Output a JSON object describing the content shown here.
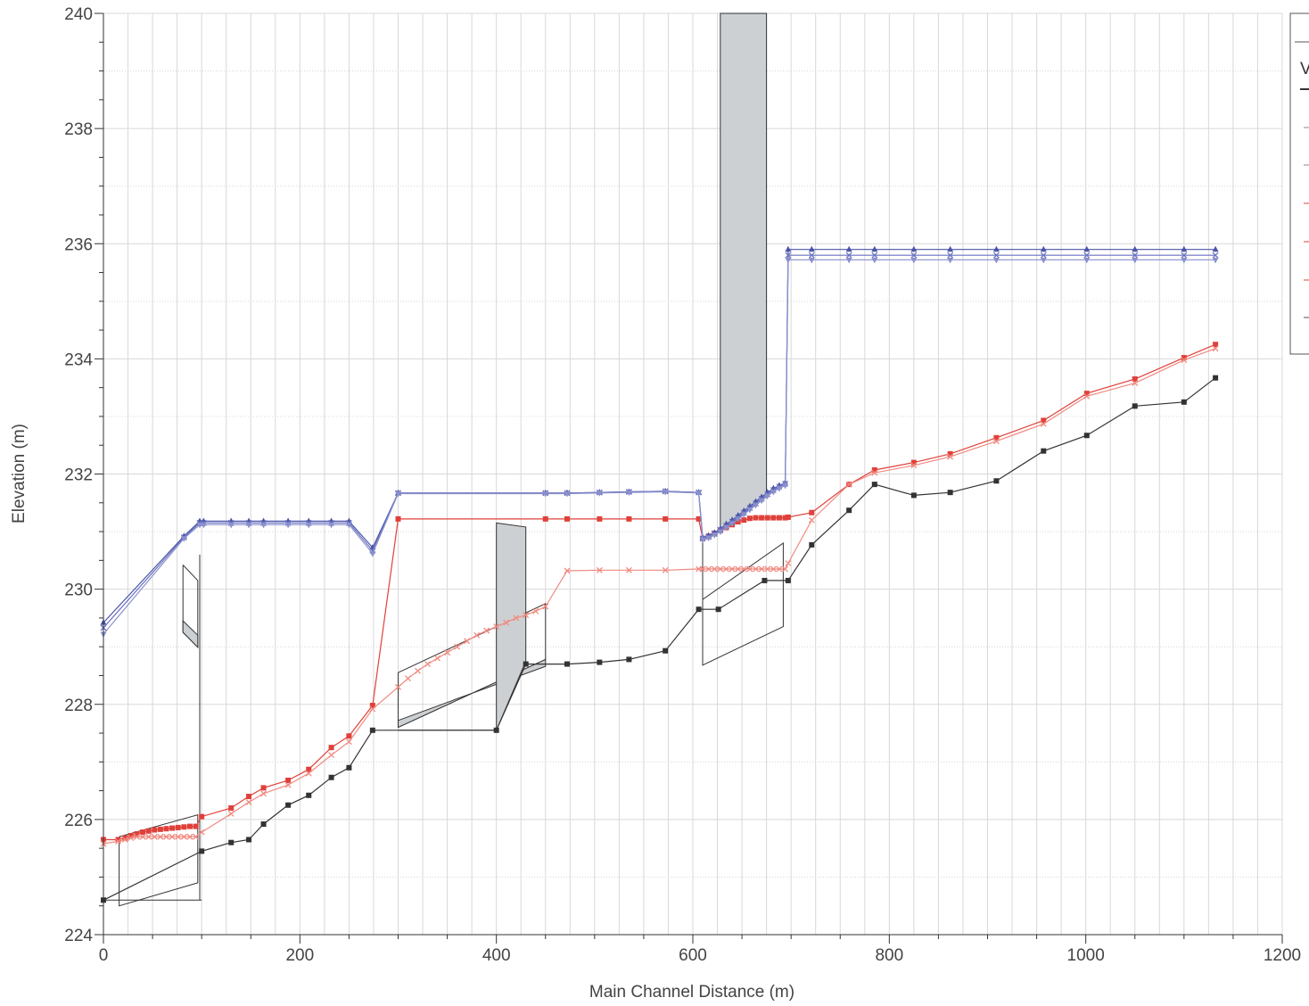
{
  "chart_data": {
    "type": "line",
    "xlabel": "Main Channel Distance (m)",
    "ylabel": "Elevation (m)",
    "xlim": [
      0,
      1200
    ],
    "ylim": [
      224,
      240
    ],
    "x_ticks": [
      0,
      200,
      400,
      600,
      800,
      1000,
      1200
    ],
    "y_ticks": [
      224,
      226,
      228,
      230,
      232,
      234,
      236,
      238,
      240
    ],
    "grid": true,
    "legend_position": "top-right (cut off)",
    "legend_visible_text": "V",
    "colors": {
      "ground": "#333333",
      "red_dark": "#e0403a",
      "red_light": "#f08a80",
      "blue_dark": "#4a55a8",
      "blue_mid": "#6a72c0",
      "blue_light": "#8a90cc",
      "structure_fill": "#cdd0d3",
      "structure_line": "#333333",
      "grid": "#d8d8d8"
    },
    "series": [
      {
        "color_key": "ground",
        "marker": "square",
        "x": [
          0,
          100,
          130,
          148,
          163,
          188,
          209,
          232,
          250,
          274,
          400,
          430,
          472,
          505,
          535,
          572,
          606,
          626,
          673,
          697,
          721,
          759,
          785,
          825,
          862,
          909,
          957,
          1001,
          1050,
          1100,
          1132
        ],
        "y": [
          224.6,
          225.45,
          225.6,
          225.65,
          225.92,
          226.25,
          226.42,
          226.73,
          226.9,
          227.55,
          227.55,
          228.7,
          228.7,
          228.73,
          228.78,
          228.93,
          229.65,
          229.65,
          230.15,
          230.15,
          230.77,
          231.37,
          231.82,
          231.63,
          231.68,
          231.88,
          232.4,
          232.67,
          233.18,
          233.25,
          233.67
        ]
      },
      {
        "color_key": "red_dark",
        "marker": "square",
        "x": [
          0,
          15,
          22,
          28,
          34,
          40,
          46,
          52,
          58,
          64,
          70,
          76,
          82,
          88,
          94,
          100,
          130,
          148,
          163,
          188,
          209,
          232,
          250,
          274,
          300,
          450,
          472,
          505,
          535,
          572,
          606,
          610,
          616,
          622,
          628,
          634,
          640,
          646,
          652,
          658,
          664,
          670,
          676,
          682,
          688,
          694,
          697,
          721,
          759,
          785,
          825,
          862,
          909,
          957,
          1001,
          1050,
          1100,
          1132
        ],
        "y": [
          225.65,
          225.65,
          225.68,
          225.72,
          225.75,
          225.78,
          225.8,
          225.82,
          225.83,
          225.84,
          225.85,
          225.86,
          225.87,
          225.88,
          225.88,
          226.05,
          226.2,
          226.4,
          226.55,
          226.68,
          226.87,
          227.25,
          227.45,
          227.98,
          231.22,
          231.22,
          231.22,
          231.22,
          231.22,
          231.22,
          231.22,
          230.88,
          230.92,
          230.97,
          231.02,
          231.07,
          231.12,
          231.17,
          231.2,
          231.23,
          231.24,
          231.24,
          231.24,
          231.24,
          231.24,
          231.24,
          231.25,
          231.33,
          231.82,
          232.07,
          232.2,
          232.35,
          232.63,
          232.93,
          233.4,
          233.65,
          234.02,
          234.25
        ]
      },
      {
        "color_key": "red_light",
        "marker": "x",
        "x": [
          0,
          15,
          22,
          28,
          34,
          40,
          46,
          52,
          58,
          64,
          70,
          76,
          82,
          88,
          94,
          100,
          130,
          148,
          163,
          188,
          209,
          232,
          250,
          274,
          300,
          310,
          320,
          330,
          340,
          350,
          360,
          370,
          380,
          390,
          400,
          410,
          420,
          430,
          440,
          450,
          472,
          505,
          535,
          572,
          606,
          610,
          616,
          622,
          628,
          634,
          640,
          646,
          652,
          658,
          664,
          670,
          676,
          682,
          688,
          694,
          697,
          721,
          759,
          785,
          825,
          862,
          909,
          957,
          1001,
          1050,
          1100,
          1132
        ],
        "y": [
          225.58,
          225.62,
          225.65,
          225.68,
          225.7,
          225.7,
          225.7,
          225.7,
          225.7,
          225.7,
          225.7,
          225.7,
          225.7,
          225.7,
          225.7,
          225.78,
          226.1,
          226.3,
          226.45,
          226.6,
          226.8,
          227.12,
          227.35,
          227.92,
          228.3,
          228.45,
          228.58,
          228.7,
          228.8,
          228.9,
          229.0,
          229.1,
          229.2,
          229.28,
          229.35,
          229.42,
          229.5,
          229.55,
          229.62,
          229.7,
          230.32,
          230.33,
          230.33,
          230.33,
          230.35,
          230.35,
          230.35,
          230.35,
          230.35,
          230.35,
          230.35,
          230.35,
          230.35,
          230.35,
          230.35,
          230.35,
          230.35,
          230.35,
          230.35,
          230.35,
          230.45,
          231.2,
          231.82,
          232.02,
          232.15,
          232.3,
          232.57,
          232.87,
          233.35,
          233.58,
          233.98,
          234.18
        ]
      },
      {
        "color_key": "blue_dark",
        "marker": "triangle-up",
        "x": [
          0,
          82,
          98,
          102,
          130,
          148,
          163,
          188,
          209,
          232,
          250,
          274,
          300,
          450,
          472,
          505,
          535,
          572,
          606,
          610,
          616,
          622,
          628,
          634,
          640,
          646,
          652,
          658,
          664,
          670,
          676,
          682,
          688,
          694,
          697,
          721,
          759,
          785,
          825,
          862,
          909,
          957,
          1001,
          1050,
          1100,
          1132
        ],
        "y": [
          229.42,
          230.92,
          231.18,
          231.18,
          231.18,
          231.18,
          231.18,
          231.18,
          231.18,
          231.18,
          231.18,
          230.72,
          231.67,
          231.67,
          231.67,
          231.68,
          231.69,
          231.7,
          231.68,
          230.9,
          230.93,
          230.98,
          231.05,
          231.13,
          231.2,
          231.28,
          231.36,
          231.44,
          231.52,
          231.6,
          231.68,
          231.75,
          231.8,
          231.85,
          235.9,
          235.9,
          235.9,
          235.9,
          235.9,
          235.9,
          235.9,
          235.9,
          235.9,
          235.9,
          235.9,
          235.9
        ]
      },
      {
        "color_key": "blue_mid",
        "marker": "x",
        "x": [
          0,
          82,
          98,
          102,
          130,
          148,
          163,
          188,
          209,
          232,
          250,
          274,
          300,
          450,
          472,
          505,
          535,
          572,
          606,
          610,
          616,
          622,
          628,
          634,
          640,
          646,
          652,
          658,
          664,
          670,
          676,
          682,
          688,
          694,
          697,
          721,
          759,
          785,
          825,
          862,
          909,
          957,
          1001,
          1050,
          1100,
          1132
        ],
        "y": [
          229.33,
          230.9,
          231.15,
          231.15,
          231.15,
          231.15,
          231.15,
          231.15,
          231.15,
          231.15,
          231.15,
          230.67,
          231.67,
          231.67,
          231.67,
          231.68,
          231.69,
          231.7,
          231.68,
          230.88,
          230.91,
          230.96,
          231.03,
          231.1,
          231.17,
          231.25,
          231.33,
          231.41,
          231.49,
          231.57,
          231.65,
          231.72,
          231.78,
          231.83,
          235.8,
          235.8,
          235.8,
          235.8,
          235.8,
          235.8,
          235.8,
          235.8,
          235.8,
          235.8,
          235.8,
          235.8
        ]
      },
      {
        "color_key": "blue_light",
        "marker": "triangle-down",
        "x": [
          0,
          82,
          98,
          102,
          130,
          148,
          163,
          188,
          209,
          232,
          250,
          274,
          300,
          450,
          472,
          505,
          535,
          572,
          606,
          610,
          616,
          622,
          628,
          634,
          640,
          646,
          652,
          658,
          664,
          670,
          676,
          682,
          688,
          694,
          697,
          721,
          759,
          785,
          825,
          862,
          909,
          957,
          1001,
          1050,
          1100,
          1132
        ],
        "y": [
          229.22,
          230.88,
          231.12,
          231.12,
          231.12,
          231.12,
          231.12,
          231.12,
          231.12,
          231.12,
          231.12,
          230.62,
          231.66,
          231.66,
          231.66,
          231.67,
          231.68,
          231.69,
          231.67,
          230.86,
          230.89,
          230.94,
          231.0,
          231.07,
          231.14,
          231.22,
          231.3,
          231.38,
          231.46,
          231.54,
          231.62,
          231.69,
          231.75,
          231.8,
          235.72,
          235.72,
          235.72,
          235.72,
          235.72,
          235.72,
          235.72,
          235.72,
          235.72,
          235.72,
          235.72,
          235.72
        ]
      }
    ],
    "structures": [
      {
        "type": "outline",
        "points": [
          [
            0,
            224.6
          ],
          [
            100,
            224.6
          ]
        ]
      },
      {
        "type": "outline",
        "points": [
          [
            16,
            225.7
          ],
          [
            16,
            224.5
          ],
          [
            96,
            224.9
          ],
          [
            96,
            226.08
          ],
          [
            16,
            225.7
          ]
        ]
      },
      {
        "type": "outline",
        "points": [
          [
            98,
            224.6
          ],
          [
            98,
            230.6
          ]
        ]
      },
      {
        "type": "outline",
        "points": [
          [
            81,
            230.42
          ],
          [
            81,
            229.25
          ],
          [
            96,
            228.99
          ],
          [
            96,
            230.15
          ],
          [
            81,
            230.42
          ]
        ]
      },
      {
        "type": "filled",
        "points": [
          [
            81,
            229.45
          ],
          [
            96,
            229.2
          ],
          [
            96,
            228.99
          ],
          [
            81,
            229.25
          ]
        ]
      },
      {
        "type": "outline",
        "points": [
          [
            300,
            227.55
          ],
          [
            400,
            227.55
          ]
        ]
      },
      {
        "type": "outline",
        "points": [
          [
            300,
            227.6
          ],
          [
            300,
            228.55
          ],
          [
            450,
            229.75
          ],
          [
            450,
            228.78
          ],
          [
            300,
            227.6
          ]
        ]
      },
      {
        "type": "filled",
        "points": [
          [
            300,
            227.6
          ],
          [
            450,
            228.78
          ],
          [
            450,
            228.66
          ],
          [
            300,
            227.72
          ]
        ]
      },
      {
        "type": "filled",
        "points": [
          [
            400,
            231.15
          ],
          [
            430,
            231.08
          ],
          [
            430,
            228.75
          ],
          [
            400,
            227.55
          ]
        ]
      },
      {
        "type": "outline",
        "points": [
          [
            610,
            230.85
          ],
          [
            610,
            228.68
          ],
          [
            692,
            229.35
          ],
          [
            692,
            230.8
          ],
          [
            610,
            229.82
          ],
          [
            610,
            230.85
          ]
        ]
      },
      {
        "type": "filled",
        "points": [
          [
            628,
            240
          ],
          [
            675,
            240
          ],
          [
            675,
            231.6
          ],
          [
            628,
            231.0
          ]
        ]
      }
    ]
  },
  "legend": {
    "visible_label": "V"
  }
}
